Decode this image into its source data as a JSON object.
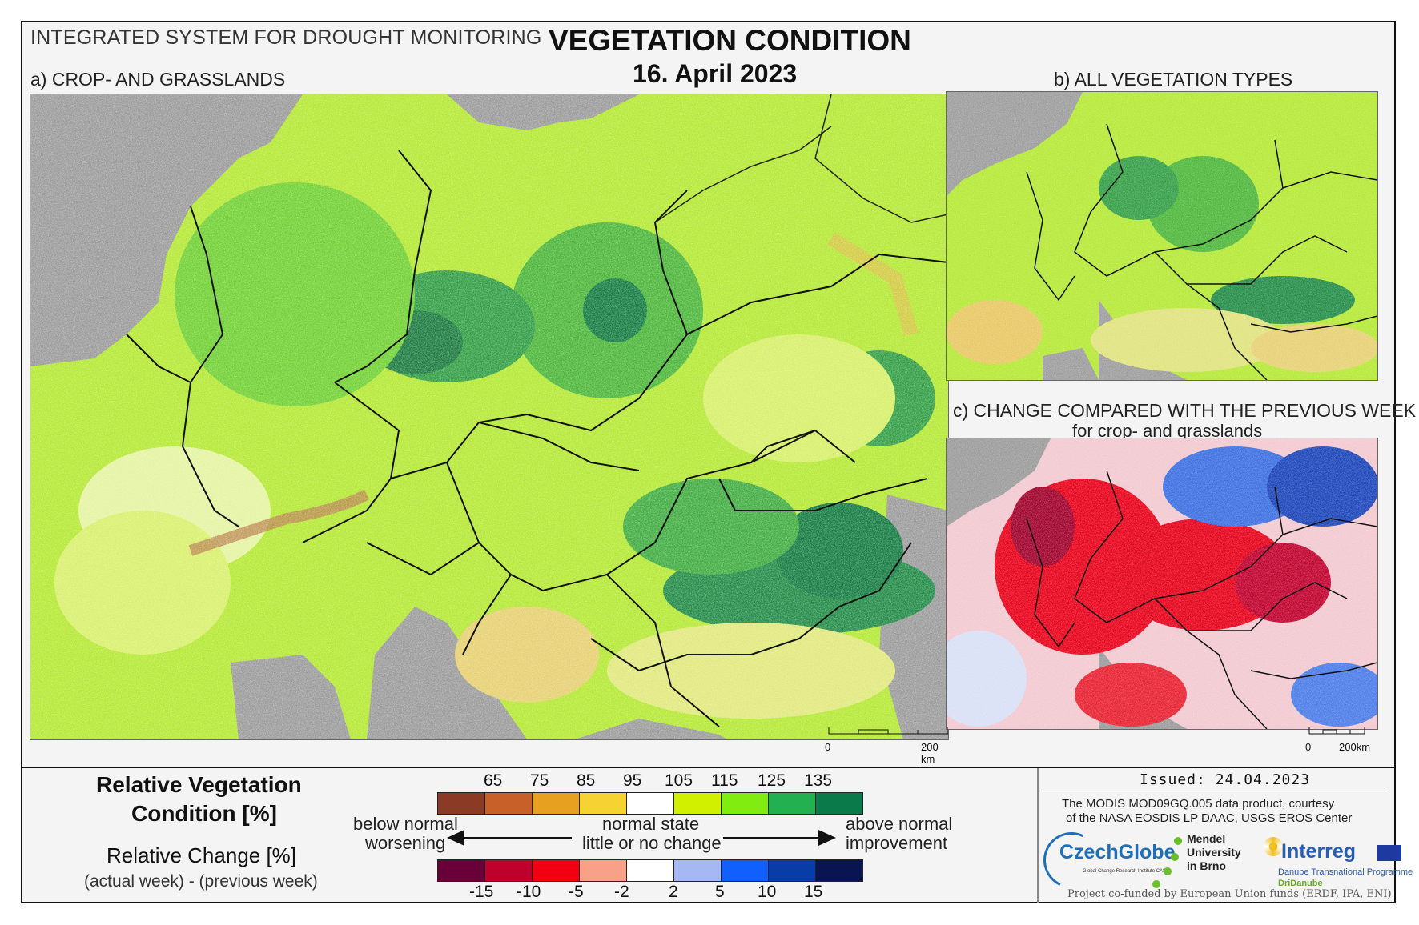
{
  "header": {
    "system": "INTEGRATED SYSTEM FOR DROUGHT MONITORING",
    "title": "VEGETATION CONDITION",
    "date": "16. April 2023"
  },
  "panels": {
    "a": "a) CROP- AND GRASSLANDS",
    "b": "b) ALL VEGETATION TYPES",
    "c_line1": "c) CHANGE COMPARED WITH THE PREVIOUS WEEK",
    "c_line2": "for crop- and grasslands"
  },
  "scalebars": {
    "main": {
      "zero": "0",
      "end": "200 km"
    },
    "small": {
      "zero": "0",
      "end": "200km"
    }
  },
  "legend": {
    "rvc_title_1": "Relative Vegetation",
    "rvc_title_2": "Condition [%]",
    "rc_title": "Relative Change [%]",
    "rc_subtitle": "(actual week) - (previous week)",
    "rvc_ticks": [
      "65",
      "75",
      "85",
      "95",
      "105",
      "115",
      "125",
      "135"
    ],
    "rvc_colors": [
      "#8b3a26",
      "#c8602a",
      "#e8a020",
      "#f6d232",
      "#ffffff",
      "#d0f000",
      "#80ec10",
      "#23b050",
      "#0a7a4a"
    ],
    "rc_ticks": [
      "-15",
      "-10",
      "-5",
      "-2",
      "2",
      "5",
      "10",
      "15"
    ],
    "rc_colors": [
      "#6a0038",
      "#c0002c",
      "#f00010",
      "#f8a088",
      "#ffffff",
      "#a6b8f4",
      "#1060ff",
      "#0a3ca8",
      "#0a1450"
    ],
    "left_1": "below normal",
    "left_2": "worsening",
    "mid_1": "normal state",
    "mid_2": "little or no change",
    "right_1": "above normal",
    "right_2": "improvement"
  },
  "footer": {
    "issued": "Issued: 24.04.2023",
    "courtesy_1": "The MODIS MOD09GQ.005 data product, courtesy",
    "courtesy_2": "of the NASA EOSDIS LP DAAC, USGS EROS Center",
    "czechglobe": "CzechGlobe",
    "czechglobe_sub": "Global Change Research Institute CAS",
    "mendel_1": "Mendel",
    "mendel_2": "University",
    "mendel_3": "in Brno",
    "interreg": "Interreg",
    "interreg_sub": "Danube Transnational Programme",
    "dridanube": "DriDanube",
    "funding": "Project co-funded by European Union funds (ERDF, IPA, ENI)"
  }
}
